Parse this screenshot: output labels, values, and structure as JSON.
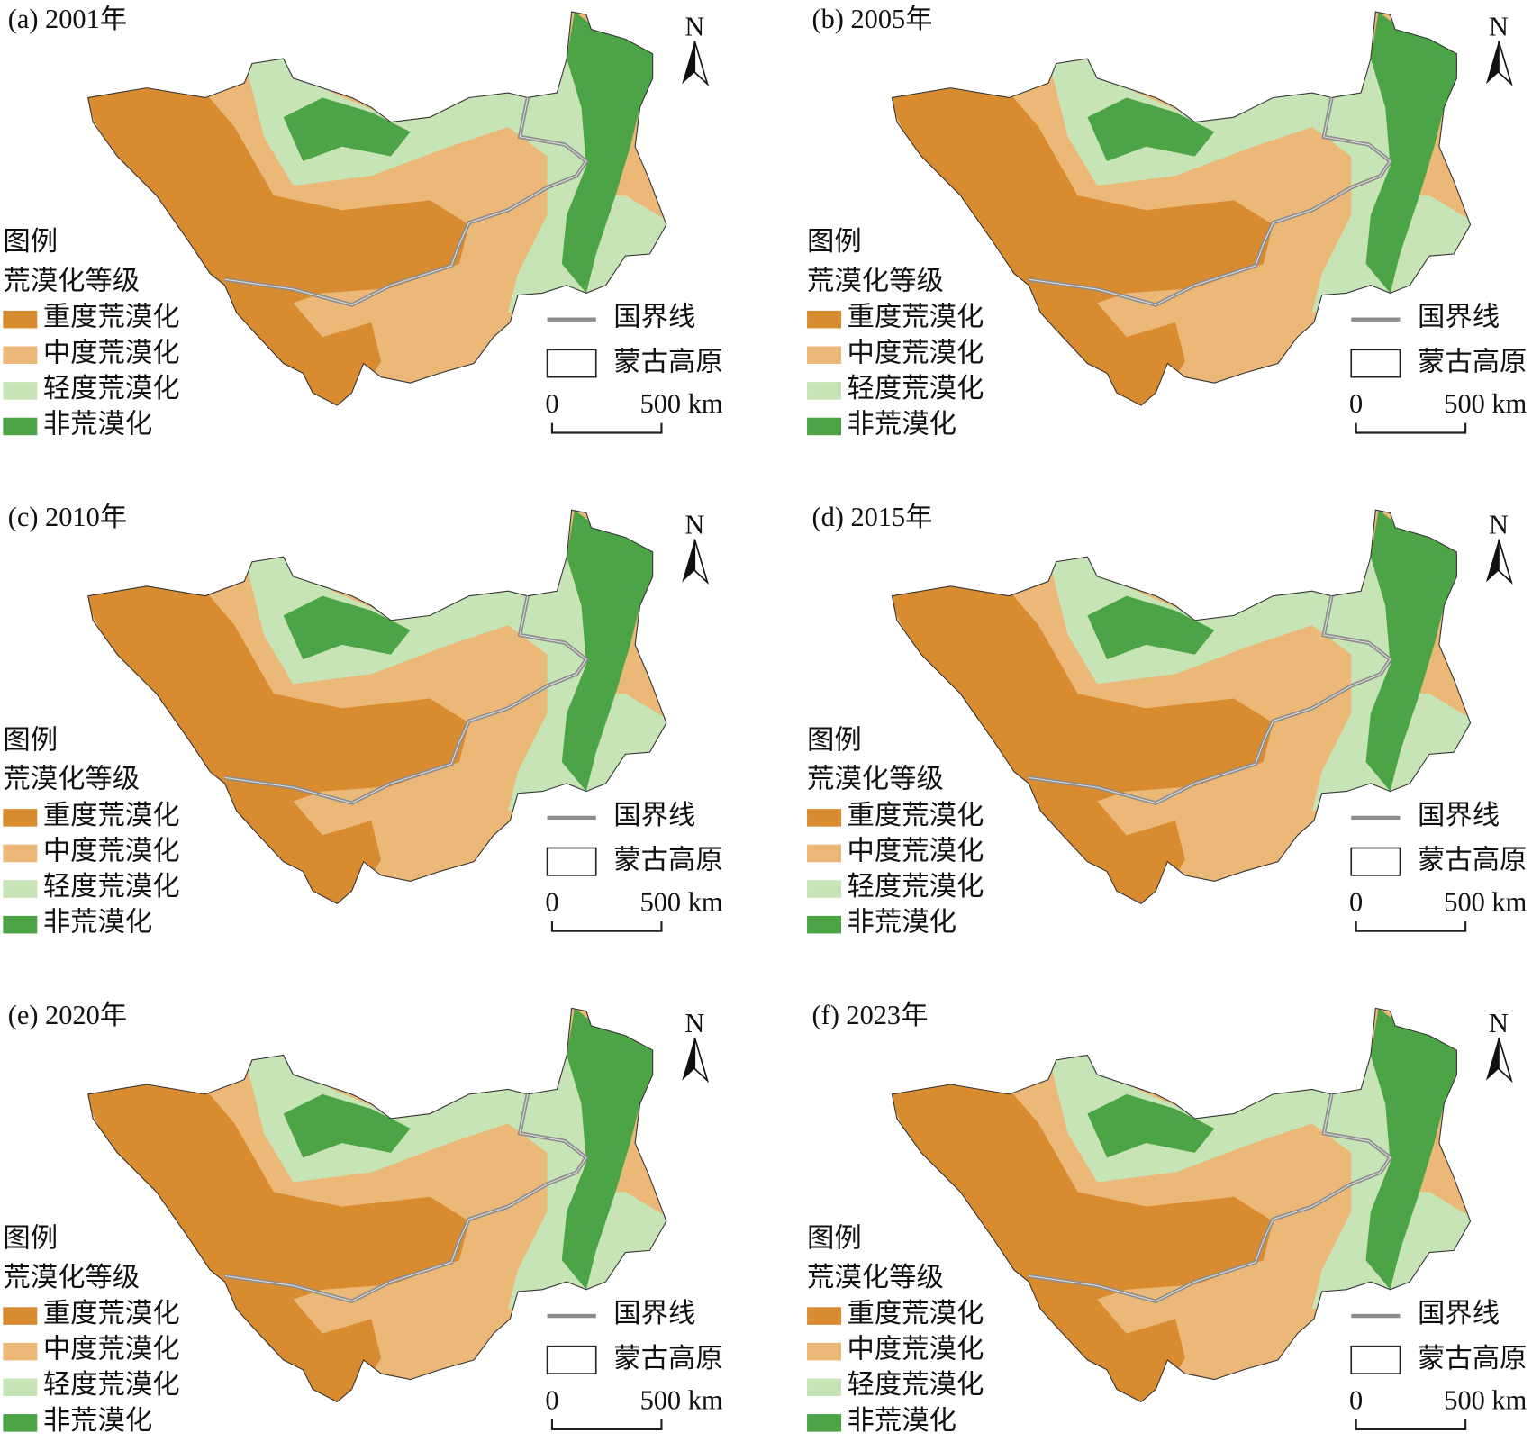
{
  "legend": {
    "title": "图例",
    "subtitle": "荒漠化等级",
    "classes": [
      {
        "name": "重度荒漠化",
        "color": "#d98b30"
      },
      {
        "name": "中度荒漠化",
        "color": "#ebb877"
      },
      {
        "name": "轻度荒漠化",
        "color": "#c7e4b6"
      },
      {
        "name": "非荒漠化",
        "color": "#4ca446"
      }
    ],
    "boundary": "国界线",
    "region": "蒙古高原"
  },
  "scale_bar": {
    "start": "0",
    "end": "500 km"
  },
  "north": "N",
  "panels": [
    {
      "title": "(a) 2001年"
    },
    {
      "title": "(b) 2005年"
    },
    {
      "title": "(c) 2010年"
    },
    {
      "title": "(d) 2015年"
    },
    {
      "title": "(e) 2020年"
    },
    {
      "title": "(f) 2023年"
    }
  ]
}
